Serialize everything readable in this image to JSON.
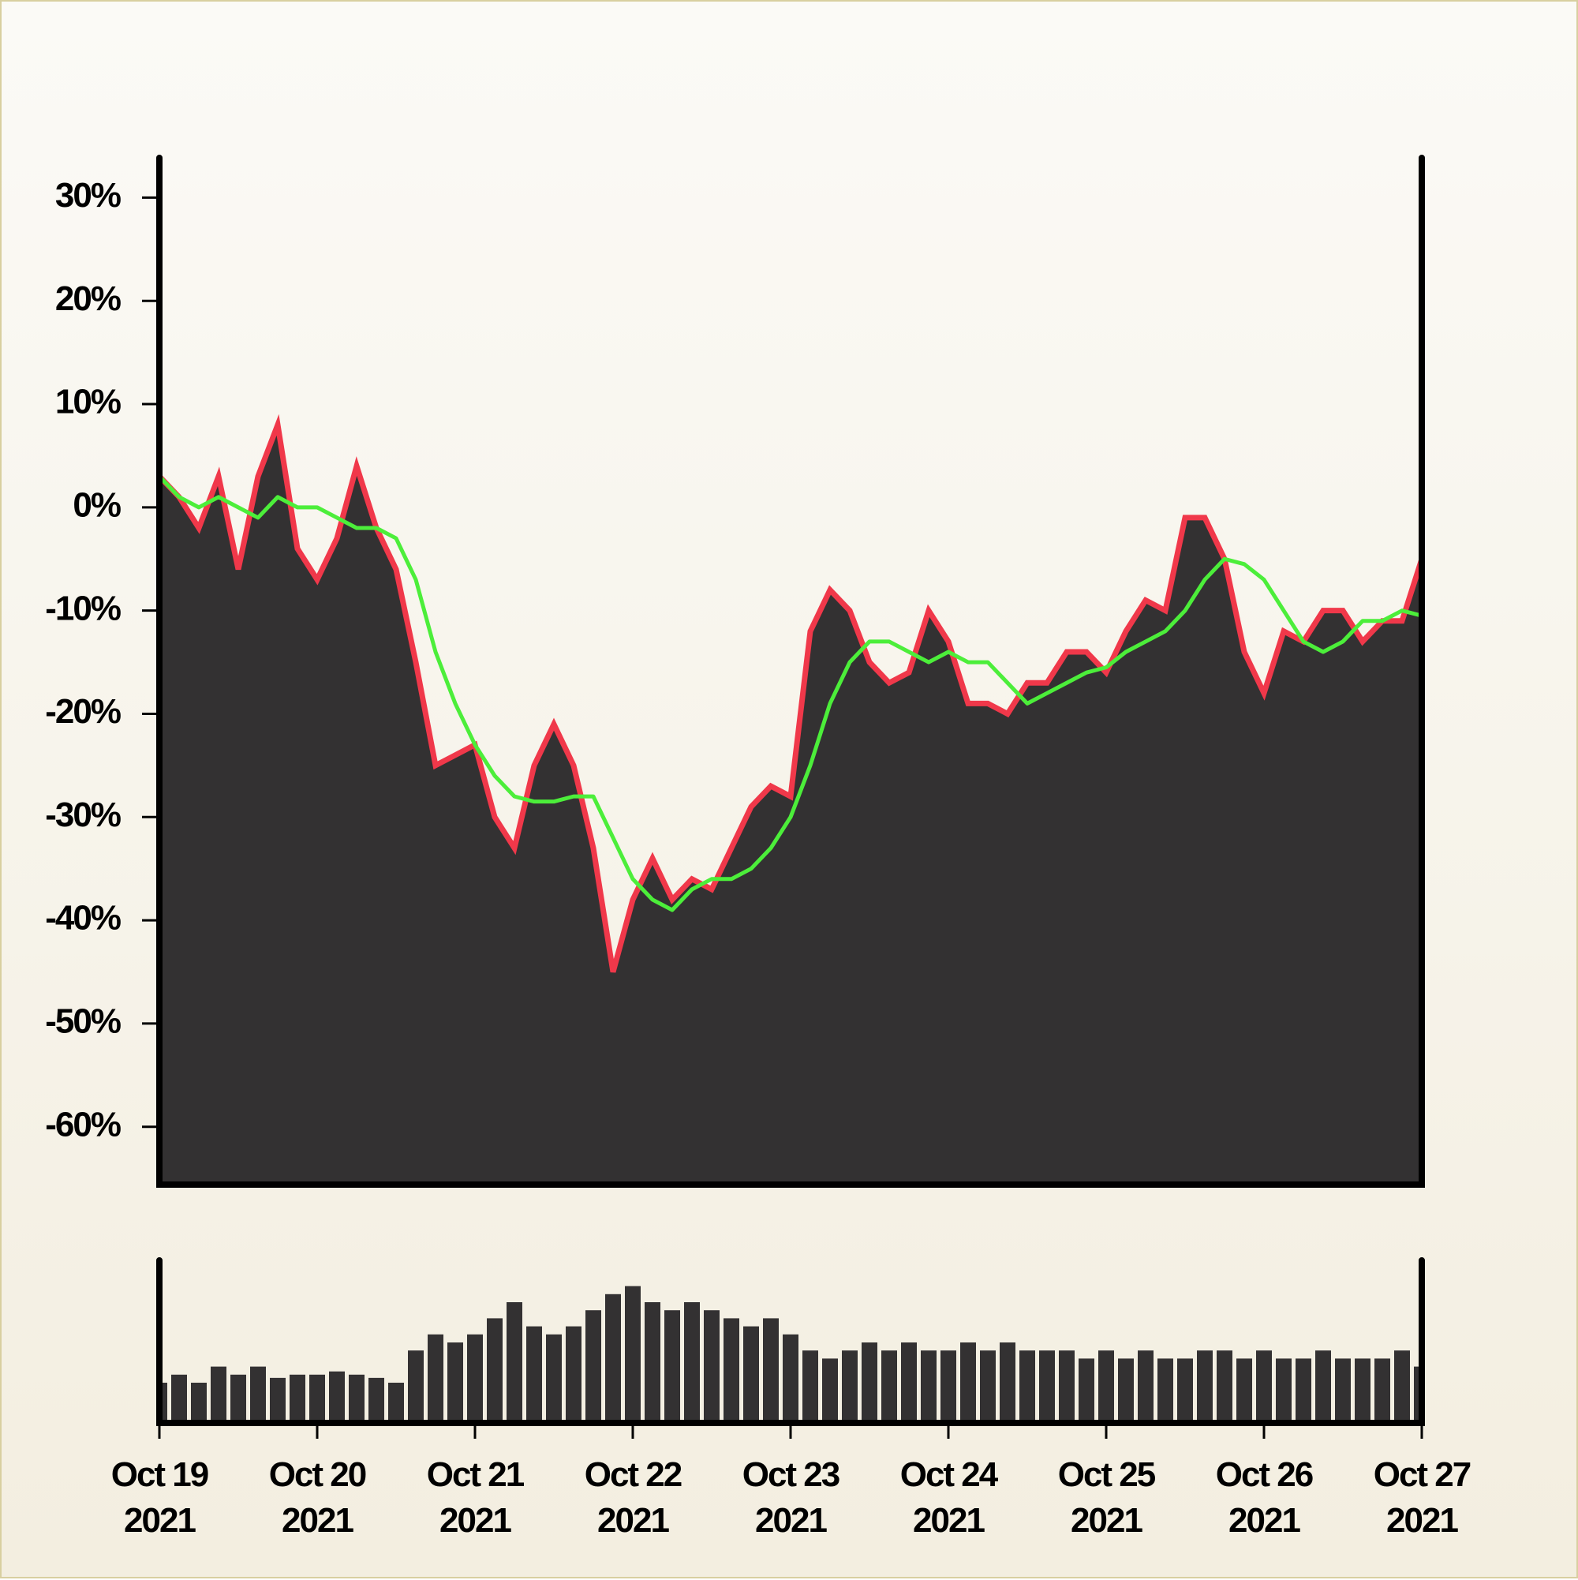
{
  "chart_data": [
    {
      "type": "area",
      "x": [
        "2021-10-19T00:00",
        "2021-10-19T03:00",
        "2021-10-19T06:00",
        "2021-10-19T09:00",
        "2021-10-19T12:00",
        "2021-10-19T15:00",
        "2021-10-19T18:00",
        "2021-10-19T21:00",
        "2021-10-20T00:00",
        "2021-10-20T03:00",
        "2021-10-20T06:00",
        "2021-10-20T09:00",
        "2021-10-20T12:00",
        "2021-10-20T15:00",
        "2021-10-20T18:00",
        "2021-10-20T21:00",
        "2021-10-21T00:00",
        "2021-10-21T03:00",
        "2021-10-21T06:00",
        "2021-10-21T09:00",
        "2021-10-21T12:00",
        "2021-10-21T15:00",
        "2021-10-21T18:00",
        "2021-10-21T21:00",
        "2021-10-22T00:00",
        "2021-10-22T03:00",
        "2021-10-22T06:00",
        "2021-10-22T09:00",
        "2021-10-22T12:00",
        "2021-10-22T15:00",
        "2021-10-22T18:00",
        "2021-10-22T21:00",
        "2021-10-23T00:00",
        "2021-10-23T03:00",
        "2021-10-23T06:00",
        "2021-10-23T09:00",
        "2021-10-23T12:00",
        "2021-10-23T15:00",
        "2021-10-23T18:00",
        "2021-10-23T21:00",
        "2021-10-24T00:00",
        "2021-10-24T03:00",
        "2021-10-24T06:00",
        "2021-10-24T09:00",
        "2021-10-24T12:00",
        "2021-10-24T15:00",
        "2021-10-24T18:00",
        "2021-10-24T21:00",
        "2021-10-25T00:00",
        "2021-10-25T03:00",
        "2021-10-25T06:00",
        "2021-10-25T09:00",
        "2021-10-25T12:00",
        "2021-10-25T15:00",
        "2021-10-25T18:00",
        "2021-10-25T21:00",
        "2021-10-26T00:00",
        "2021-10-26T03:00",
        "2021-10-26T06:00",
        "2021-10-26T09:00",
        "2021-10-26T12:00",
        "2021-10-26T15:00",
        "2021-10-26T18:00",
        "2021-10-26T21:00",
        "2021-10-27T00:00"
      ],
      "series": [
        {
          "color": "#333132",
          "line_color": "#f0384a",
          "values": [
            3,
            1,
            -2,
            3,
            -6,
            3,
            8,
            -4,
            -7,
            -3,
            4,
            -2,
            -6,
            -15,
            -25,
            -24,
            -23,
            -30,
            -33,
            -25,
            -21,
            -25,
            -33,
            -45,
            -38,
            -34,
            -38,
            -36,
            -37,
            -33,
            -29,
            -27,
            -28,
            -12,
            -8,
            -10,
            -15,
            -17,
            -16,
            -10,
            -13,
            -19,
            -19,
            -20,
            -17,
            -17,
            -14,
            -14,
            -16,
            -12,
            -9,
            -10,
            -1,
            -1,
            -5,
            -14,
            -18,
            -12,
            -13,
            -10,
            -10,
            -13,
            -11,
            -11,
            -5
          ]
        },
        {
          "type": "line",
          "color": "#4cee3a",
          "values": [
            3,
            1,
            0,
            1,
            0,
            -1,
            1,
            0,
            0,
            -1,
            -2,
            -2,
            -3,
            -7,
            -14,
            -19,
            -23,
            -26,
            -28,
            -28.5,
            -28.5,
            -28,
            -28,
            -32,
            -36,
            -38,
            -39,
            -37,
            -36,
            -36,
            -35,
            -33,
            -30,
            -25,
            -19,
            -15,
            -13,
            -13,
            -14,
            -15,
            -14,
            -15,
            -15,
            -17,
            -19,
            -18,
            -17,
            -16,
            -15.5,
            -14,
            -13,
            -12,
            -10,
            -7,
            -5,
            -5.5,
            -7,
            -10,
            -13,
            -14,
            -13,
            -11,
            -11,
            -10,
            -10.5
          ]
        }
      ],
      "xlim": [
        "2021-10-19T00:00",
        "2021-10-27T00:00"
      ],
      "ylim": [
        -65.6,
        33.7
      ],
      "yticks": [
        {
          "value": 30,
          "label": "30%"
        },
        {
          "value": 20,
          "label": "20%"
        },
        {
          "value": 10,
          "label": "10%"
        },
        {
          "value": 0,
          "label": "0%"
        },
        {
          "value": -10,
          "label": "-10%"
        },
        {
          "value": -20,
          "label": "-20%"
        },
        {
          "value": -30,
          "label": "-30%"
        },
        {
          "value": -40,
          "label": "-40%"
        },
        {
          "value": -50,
          "label": "-50%"
        },
        {
          "value": -60,
          "label": "-60%"
        }
      ]
    },
    {
      "type": "bar",
      "x": [
        "2021-10-19T00:00",
        "2021-10-19T03:00",
        "2021-10-19T06:00",
        "2021-10-19T09:00",
        "2021-10-19T12:00",
        "2021-10-19T15:00",
        "2021-10-19T18:00",
        "2021-10-19T21:00",
        "2021-10-20T00:00",
        "2021-10-20T03:00",
        "2021-10-20T06:00",
        "2021-10-20T09:00",
        "2021-10-20T12:00",
        "2021-10-20T15:00",
        "2021-10-20T18:00",
        "2021-10-20T21:00",
        "2021-10-21T00:00",
        "2021-10-21T03:00",
        "2021-10-21T06:00",
        "2021-10-21T09:00",
        "2021-10-21T12:00",
        "2021-10-21T15:00",
        "2021-10-21T18:00",
        "2021-10-21T21:00",
        "2021-10-22T00:00",
        "2021-10-22T03:00",
        "2021-10-22T06:00",
        "2021-10-22T09:00",
        "2021-10-22T12:00",
        "2021-10-22T15:00",
        "2021-10-22T18:00",
        "2021-10-22T21:00",
        "2021-10-23T00:00",
        "2021-10-23T03:00",
        "2021-10-23T06:00",
        "2021-10-23T09:00",
        "2021-10-23T12:00",
        "2021-10-23T15:00",
        "2021-10-23T18:00",
        "2021-10-23T21:00",
        "2021-10-24T00:00",
        "2021-10-24T03:00",
        "2021-10-24T06:00",
        "2021-10-24T09:00",
        "2021-10-24T12:00",
        "2021-10-24T15:00",
        "2021-10-24T18:00",
        "2021-10-24T21:00",
        "2021-10-25T00:00",
        "2021-10-25T03:00",
        "2021-10-25T06:00",
        "2021-10-25T09:00",
        "2021-10-25T12:00",
        "2021-10-25T15:00",
        "2021-10-25T18:00",
        "2021-10-25T21:00",
        "2021-10-26T00:00",
        "2021-10-26T03:00",
        "2021-10-26T06:00",
        "2021-10-26T09:00",
        "2021-10-26T12:00",
        "2021-10-26T15:00",
        "2021-10-26T18:00",
        "2021-10-26T21:00",
        "2021-10-27T00:00"
      ],
      "values": [
        25,
        30,
        25,
        35,
        30,
        35,
        28,
        30,
        30,
        32,
        30,
        28,
        25,
        45,
        55,
        50,
        55,
        65,
        75,
        60,
        55,
        60,
        70,
        80,
        85,
        75,
        70,
        75,
        70,
        65,
        60,
        65,
        55,
        45,
        40,
        45,
        50,
        45,
        50,
        45,
        45,
        50,
        45,
        50,
        45,
        45,
        45,
        40,
        45,
        40,
        45,
        40,
        40,
        45,
        45,
        40,
        45,
        40,
        40,
        45,
        40,
        40,
        40,
        45,
        35
      ],
      "color": "#333132",
      "ylim": [
        0,
        100
      ],
      "xlim": [
        "2021-10-19T00:00",
        "2021-10-27T00:00"
      ],
      "xticks": [
        {
          "value": "2021-10-19T00:00",
          "label": "Oct 19 2021"
        },
        {
          "value": "2021-10-20T00:00",
          "label": "Oct 20 2021"
        },
        {
          "value": "2021-10-21T00:00",
          "label": "Oct 21 2021"
        },
        {
          "value": "2021-10-22T00:00",
          "label": "Oct 22 2021"
        },
        {
          "value": "2021-10-23T00:00",
          "label": "Oct 23 2021"
        },
        {
          "value": "2021-10-24T00:00",
          "label": "Oct 24 2021"
        },
        {
          "value": "2021-10-25T00:00",
          "label": "Oct 25 2021"
        },
        {
          "value": "2021-10-26T00:00",
          "label": "Oct 26 2021"
        },
        {
          "value": "2021-10-27T00:00",
          "label": "Oct 27 2021"
        }
      ]
    }
  ]
}
